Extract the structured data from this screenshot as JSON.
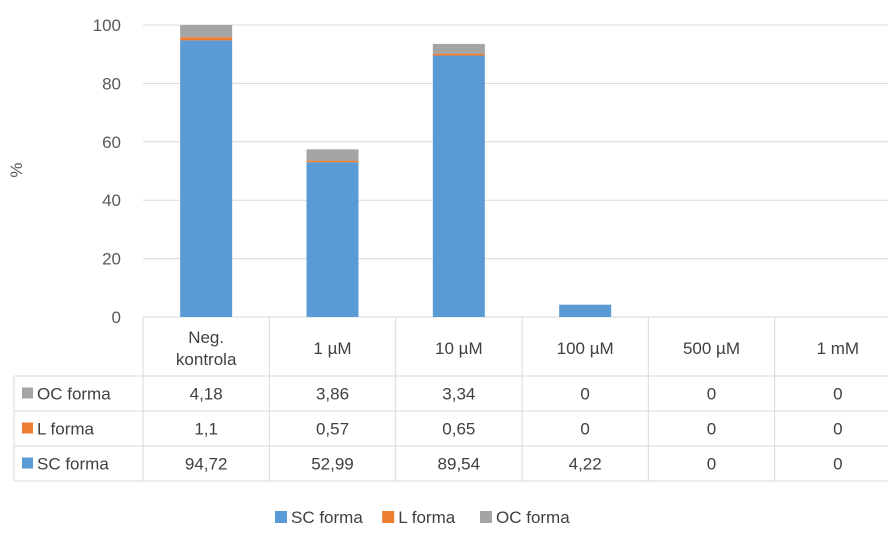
{
  "chart_data": {
    "type": "bar",
    "stacked": true,
    "categories": [
      [
        "Neg.",
        "kontrola"
      ],
      [
        "1 µM"
      ],
      [
        "10 µM"
      ],
      [
        "100 µM"
      ],
      [
        "500 µM"
      ],
      [
        "1 mM"
      ]
    ],
    "series": [
      {
        "name": "SC forma",
        "color": "#5b9bd5",
        "values": [
          94.72,
          52.99,
          89.54,
          4.22,
          0,
          0
        ],
        "labels": [
          "94,72",
          "52,99",
          "89,54",
          "4,22",
          "0",
          "0"
        ]
      },
      {
        "name": "L forma",
        "color": "#ed7d31",
        "values": [
          1.1,
          0.57,
          0.65,
          0,
          0,
          0
        ],
        "labels": [
          "1,1",
          "0,57",
          "0,65",
          "0",
          "0",
          "0"
        ]
      },
      {
        "name": "OC forma",
        "color": "#a5a5a5",
        "values": [
          4.18,
          3.86,
          3.34,
          0,
          0,
          0
        ],
        "labels": [
          "4,18",
          "3,86",
          "3,34",
          "0",
          "0",
          "0"
        ]
      }
    ],
    "ylabel": "%",
    "ylim": [
      0,
      100
    ],
    "yticks": [
      0,
      20,
      40,
      60,
      80,
      100
    ],
    "grid": true,
    "legend_position": "bottom",
    "data_table": true
  }
}
